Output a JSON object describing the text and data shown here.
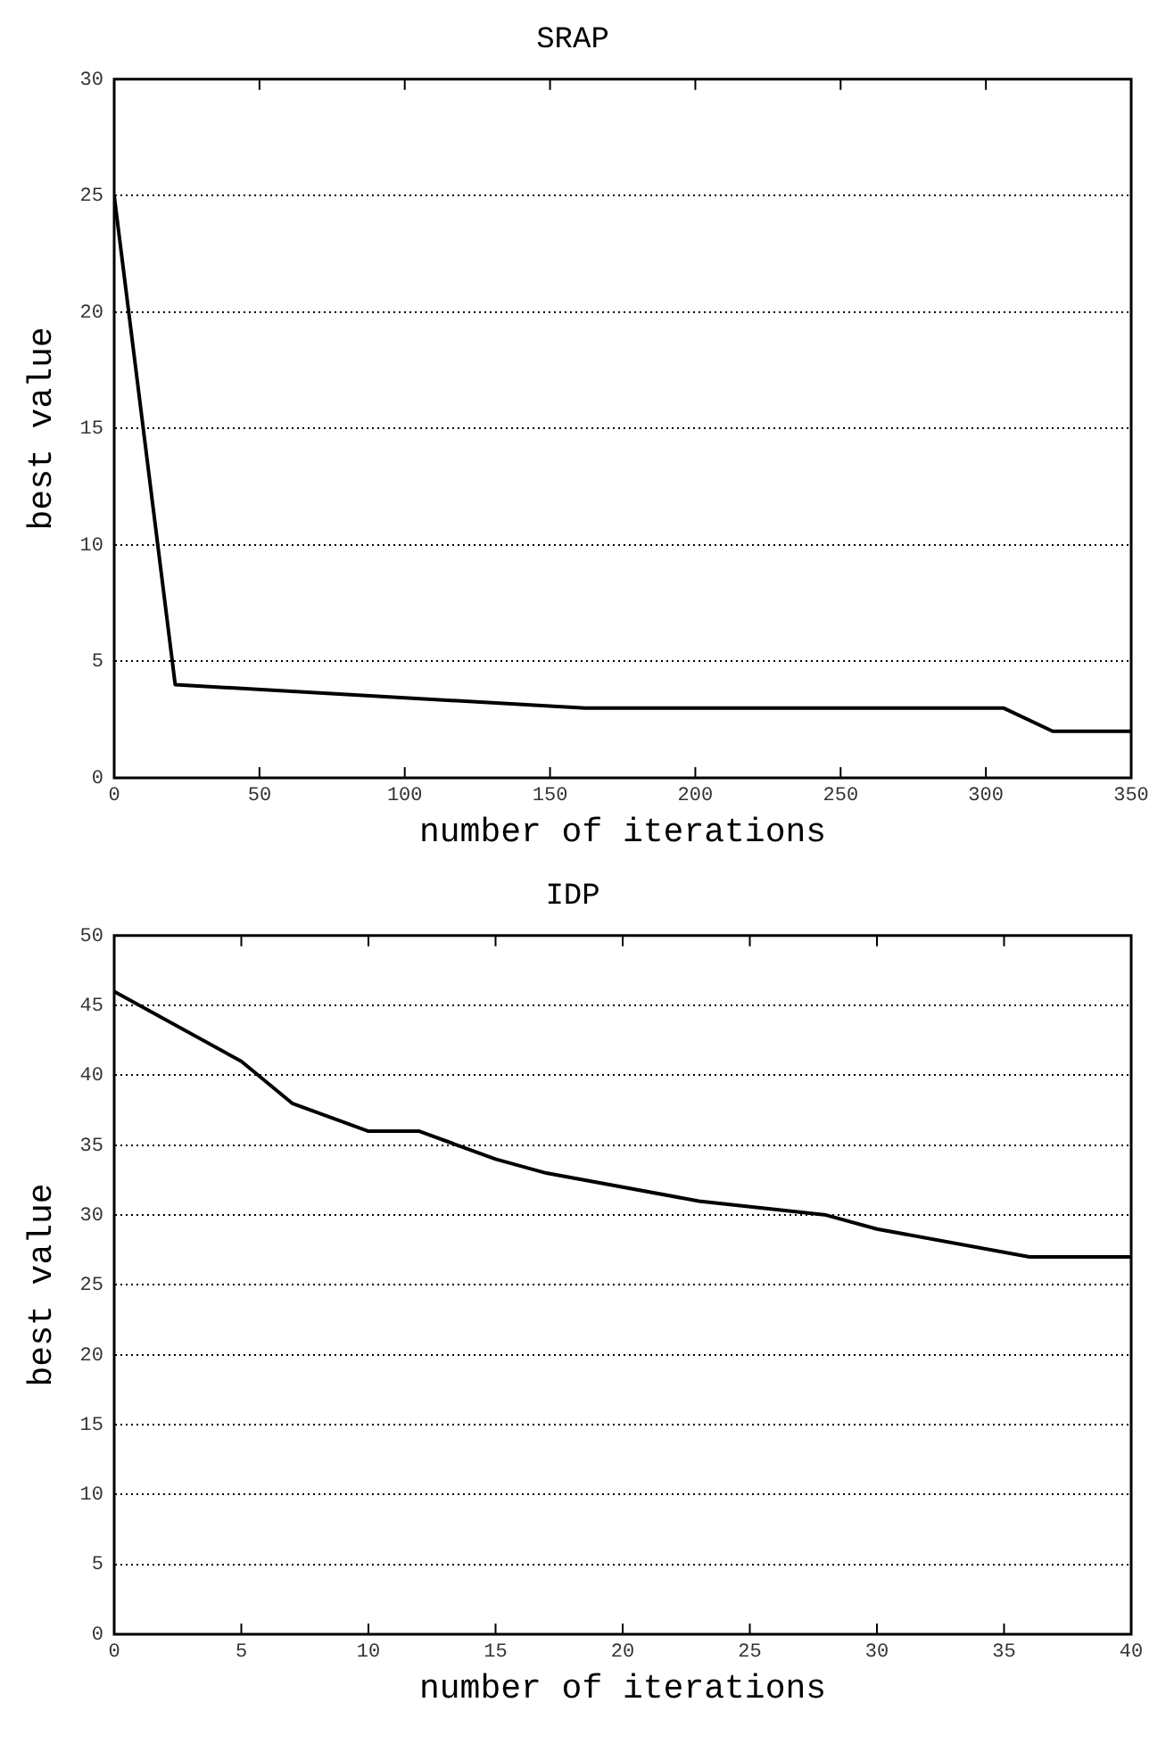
{
  "chart_data": [
    {
      "type": "line",
      "title": "SRAP",
      "xlabel": "number of iterations",
      "ylabel": "best value",
      "x": [
        0,
        21,
        162,
        306,
        323,
        350
      ],
      "series": [
        {
          "color": "#000000",
          "values": [
            25,
            4,
            3,
            3,
            2,
            2
          ]
        }
      ],
      "xlim": [
        0,
        350
      ],
      "xticks": [
        0,
        50,
        100,
        150,
        200,
        250,
        300,
        350
      ],
      "ylim": [
        0,
        30
      ],
      "yticks": [
        0,
        5,
        10,
        15,
        20,
        25,
        30
      ],
      "grid": "y",
      "legend": false,
      "marker": "none",
      "line_style": "solid"
    },
    {
      "type": "line",
      "title": "IDP",
      "xlabel": "number of iterations",
      "ylabel": "best value",
      "x": [
        0,
        5,
        7,
        10,
        12,
        15,
        17,
        23,
        28,
        30,
        36,
        40
      ],
      "series": [
        {
          "color": "#000000",
          "values": [
            46,
            41,
            38,
            36,
            36,
            34,
            33,
            31,
            30,
            29,
            27,
            27
          ]
        }
      ],
      "xlim": [
        0,
        40
      ],
      "xticks": [
        0,
        5,
        10,
        15,
        20,
        25,
        30,
        35,
        40
      ],
      "ylim": [
        0,
        50
      ],
      "yticks": [
        0,
        5,
        10,
        15,
        20,
        25,
        30,
        35,
        40,
        45,
        50
      ],
      "grid": "y",
      "legend": false,
      "marker": "none",
      "line_style": "solid"
    }
  ]
}
